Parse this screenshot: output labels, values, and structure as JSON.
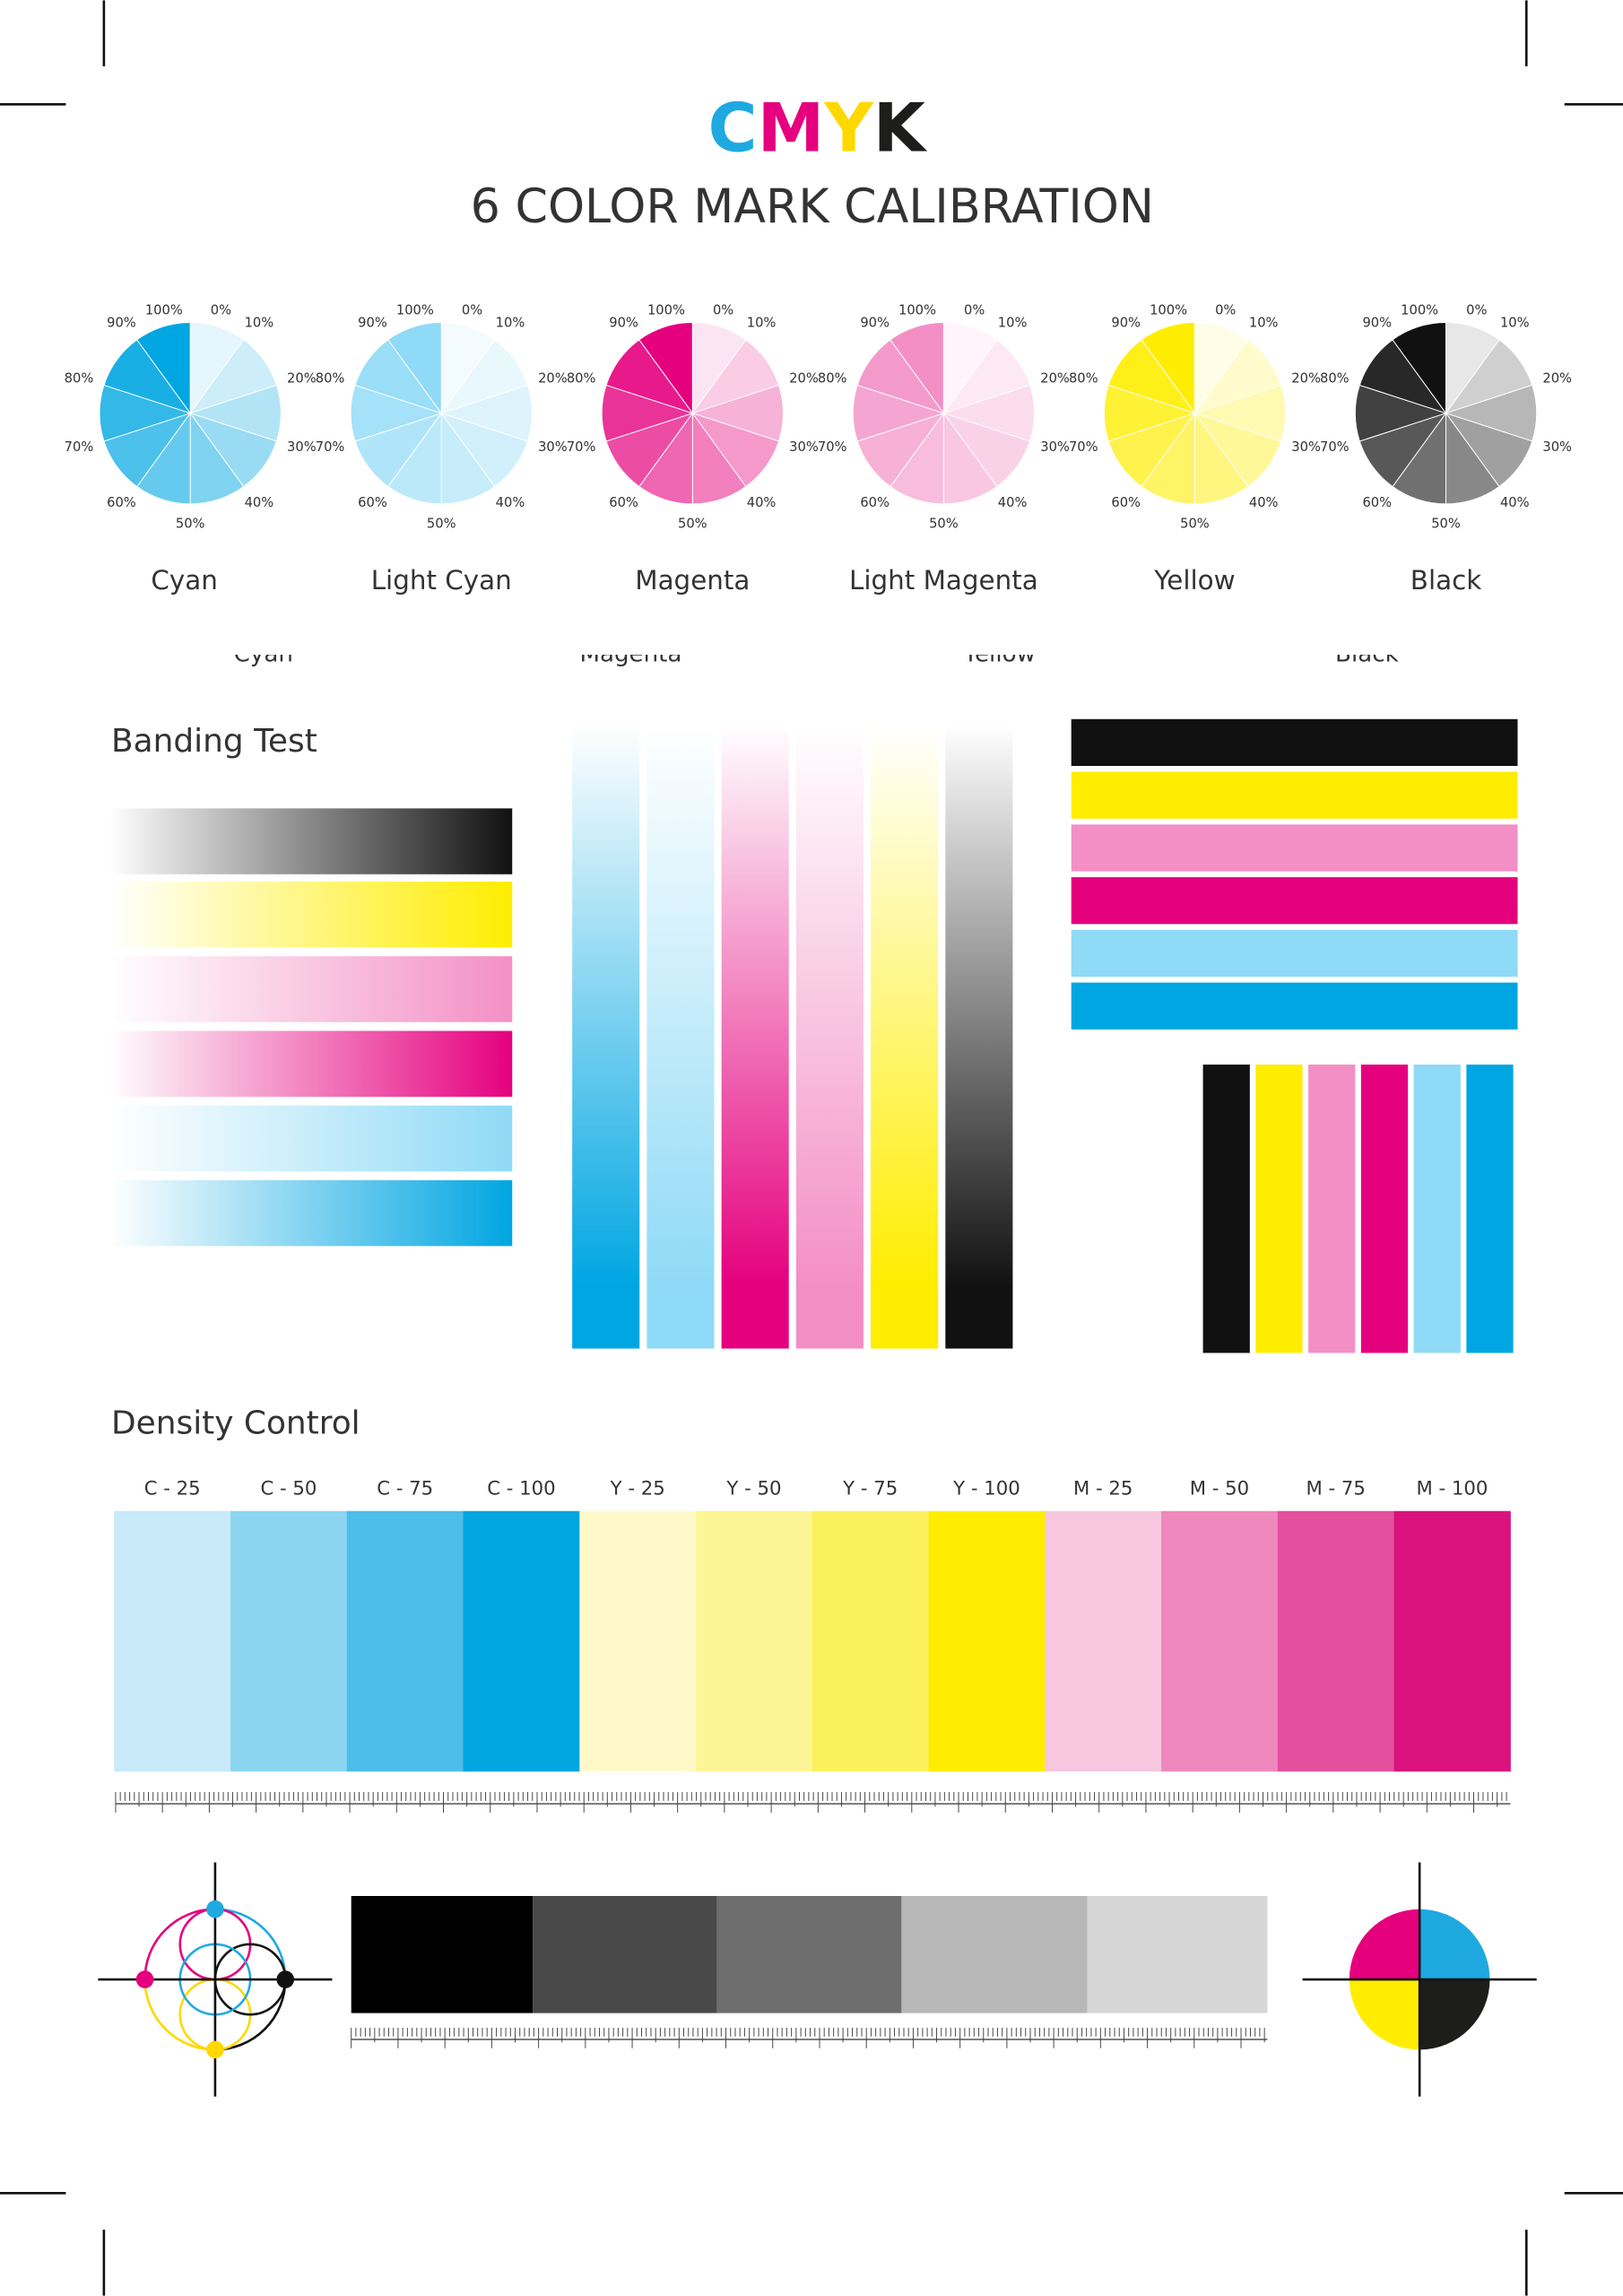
{
  "header": {
    "title": [
      {
        "text": "C",
        "color": "#1fa9e1"
      },
      {
        "text": "M",
        "color": "#e5007e"
      },
      {
        "text": "Y",
        "color": "#ffd800"
      },
      {
        "text": "K",
        "color": "#1d1d1b"
      }
    ],
    "subtitle": "6 COLOR MARK CALIBRATION"
  },
  "wheels": {
    "labels": [
      "0%",
      "10%",
      "20%",
      "30%",
      "40%",
      "50%",
      "60%",
      "70%",
      "80%",
      "90%",
      "100%"
    ],
    "items": [
      {
        "name": "Cyan",
        "color": "#00a6e2"
      },
      {
        "name": "Light Cyan",
        "color": "#8fdaf6"
      },
      {
        "name": "Magenta",
        "color": "#e5007e"
      },
      {
        "name": "Light Magenta",
        "color": "#f38fc5"
      },
      {
        "name": "Yellow",
        "color": "#ffed00"
      },
      {
        "name": "Black",
        "color": "#111111"
      }
    ]
  },
  "cut_labels": [
    "Cyan",
    "Magenta",
    "Yellow",
    "Black"
  ],
  "banding": {
    "title": "Banding Test"
  },
  "density": {
    "title": "Density Control",
    "patches": [
      {
        "label": "C - 25",
        "color": "#c8eaf9"
      },
      {
        "label": "C - 50",
        "color": "#8bd5f1"
      },
      {
        "label": "C - 75",
        "color": "#4dbde9"
      },
      {
        "label": "C - 100",
        "color": "#00a6df"
      },
      {
        "label": "Y - 25",
        "color": "#fff9c9"
      },
      {
        "label": "Y - 50",
        "color": "#fcf595"
      },
      {
        "label": "Y - 75",
        "color": "#fbf15c"
      },
      {
        "label": "Y - 100",
        "color": "#ffed00"
      },
      {
        "label": "M - 25",
        "color": "#f7c6df"
      },
      {
        "label": "M - 50",
        "color": "#ef89bd"
      },
      {
        "label": "M - 75",
        "color": "#e4509e"
      },
      {
        "label": "M - 100",
        "color": "#d9127e"
      }
    ]
  }
}
